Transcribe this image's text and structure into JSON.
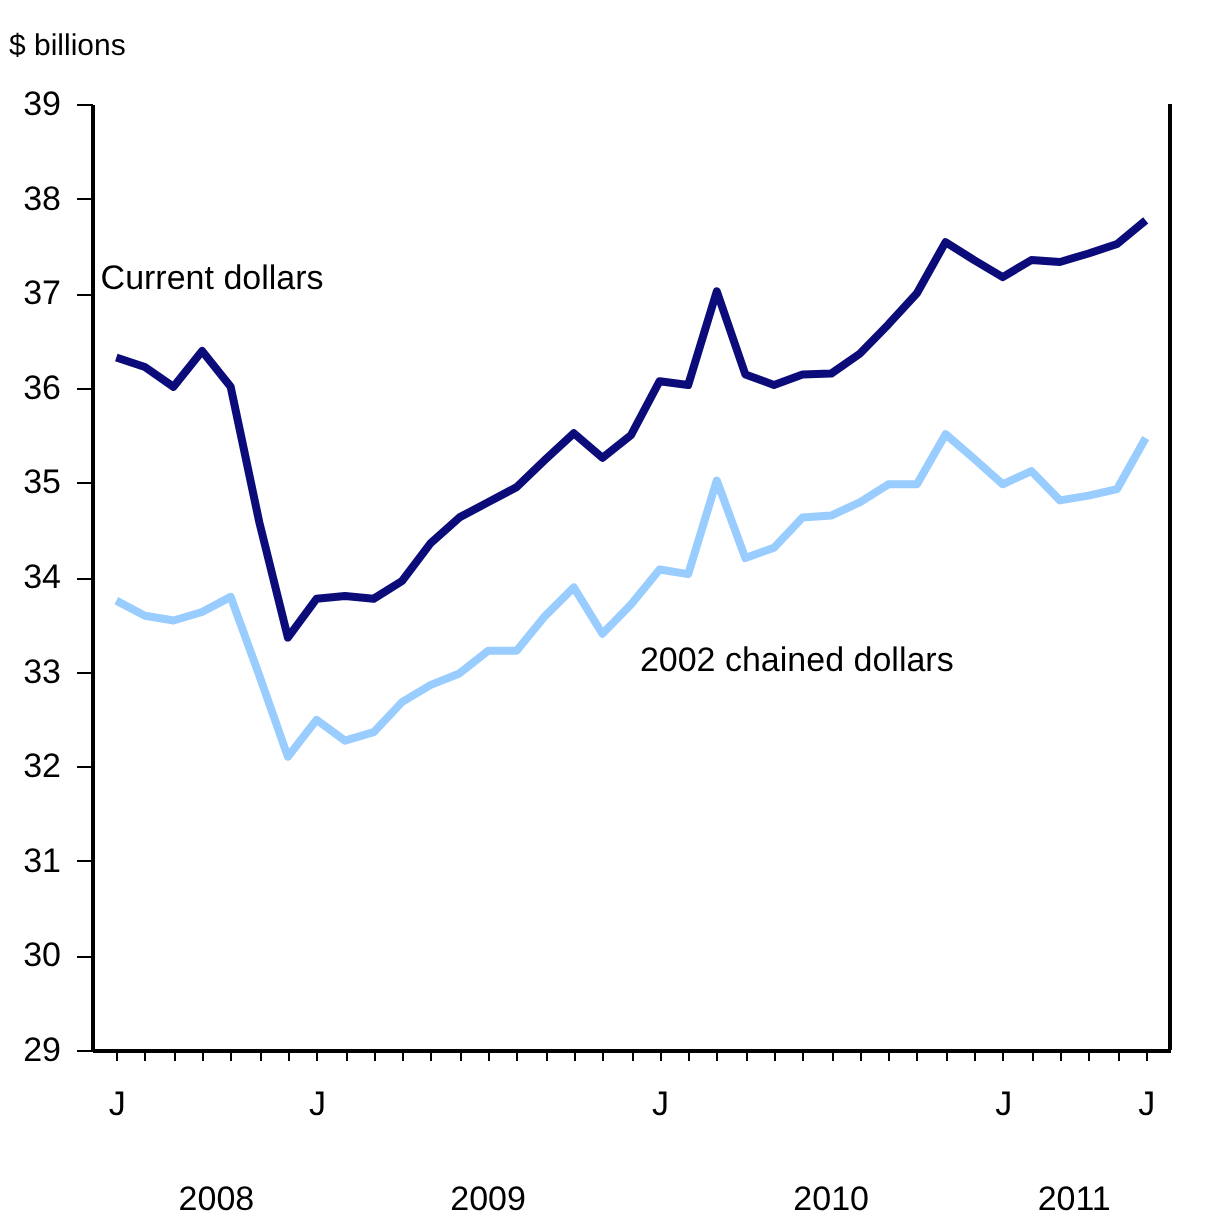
{
  "chart_data": {
    "type": "line",
    "ylabel": "$ billions",
    "categories": [
      "J",
      null,
      null,
      null,
      null,
      null,
      null,
      "J",
      null,
      null,
      null,
      null,
      null,
      null,
      null,
      null,
      null,
      null,
      null,
      "J",
      null,
      null,
      null,
      null,
      null,
      null,
      null,
      null,
      null,
      null,
      null,
      "J",
      null,
      null,
      null,
      null,
      "J"
    ],
    "series": [
      {
        "name": "Current dollars",
        "color": "#0b0b7a",
        "values": [
          36.32,
          36.22,
          36.01,
          36.39,
          36.01,
          34.58,
          33.36,
          33.77,
          33.8,
          33.77,
          33.96,
          34.36,
          34.63,
          34.79,
          34.95,
          35.24,
          35.52,
          35.26,
          35.5,
          36.07,
          36.03,
          37.02,
          36.14,
          36.03,
          36.14,
          36.15,
          36.36,
          36.67,
          37.0,
          37.54,
          37.35,
          37.17,
          37.35,
          37.33,
          37.42,
          37.52,
          37.77
        ]
      },
      {
        "name": "2002 chained dollars",
        "color": "#99ccff",
        "values": [
          33.75,
          33.59,
          33.54,
          33.63,
          33.79,
          32.96,
          32.1,
          32.49,
          32.27,
          32.36,
          32.68,
          32.86,
          32.98,
          33.22,
          33.22,
          33.59,
          33.89,
          33.4,
          33.71,
          34.08,
          34.03,
          35.02,
          34.2,
          34.31,
          34.63,
          34.65,
          34.79,
          34.98,
          34.98,
          35.51,
          35.25,
          34.98,
          35.12,
          34.81,
          34.86,
          34.93,
          35.47
        ]
      }
    ],
    "ylim": [
      29,
      39
    ],
    "yticks": [
      29,
      30,
      31,
      32,
      33,
      34,
      35,
      36,
      37,
      38,
      39
    ],
    "annotations": [
      "2008",
      "2009",
      "2010",
      "2011"
    ],
    "grid": false,
    "legend": false,
    "marker": "none",
    "line_style": "solid"
  }
}
